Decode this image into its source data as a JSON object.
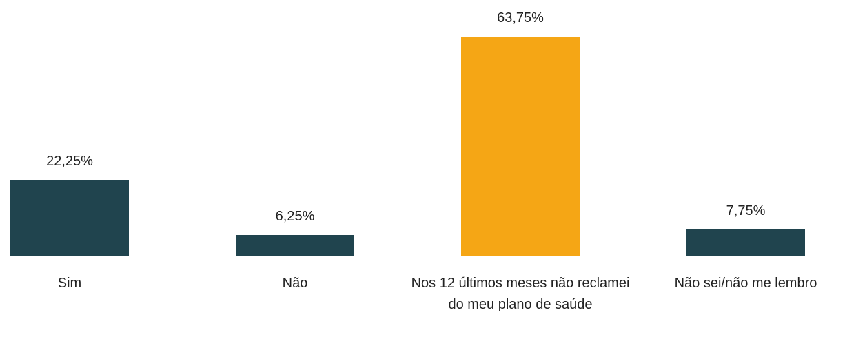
{
  "chart_data": {
    "type": "bar",
    "categories": [
      "Sim",
      "Não",
      "Nos 12 últimos meses não reclamei do meu plano de saúde",
      "Não sei/não me lembro"
    ],
    "values": [
      22.25,
      6.25,
      63.75,
      7.75
    ],
    "value_labels": [
      "22,25%",
      "6,25%",
      "63,75%",
      "7,75%"
    ],
    "colors": [
      "#20444e",
      "#20444e",
      "#f5a615",
      "#20444e"
    ]
  }
}
